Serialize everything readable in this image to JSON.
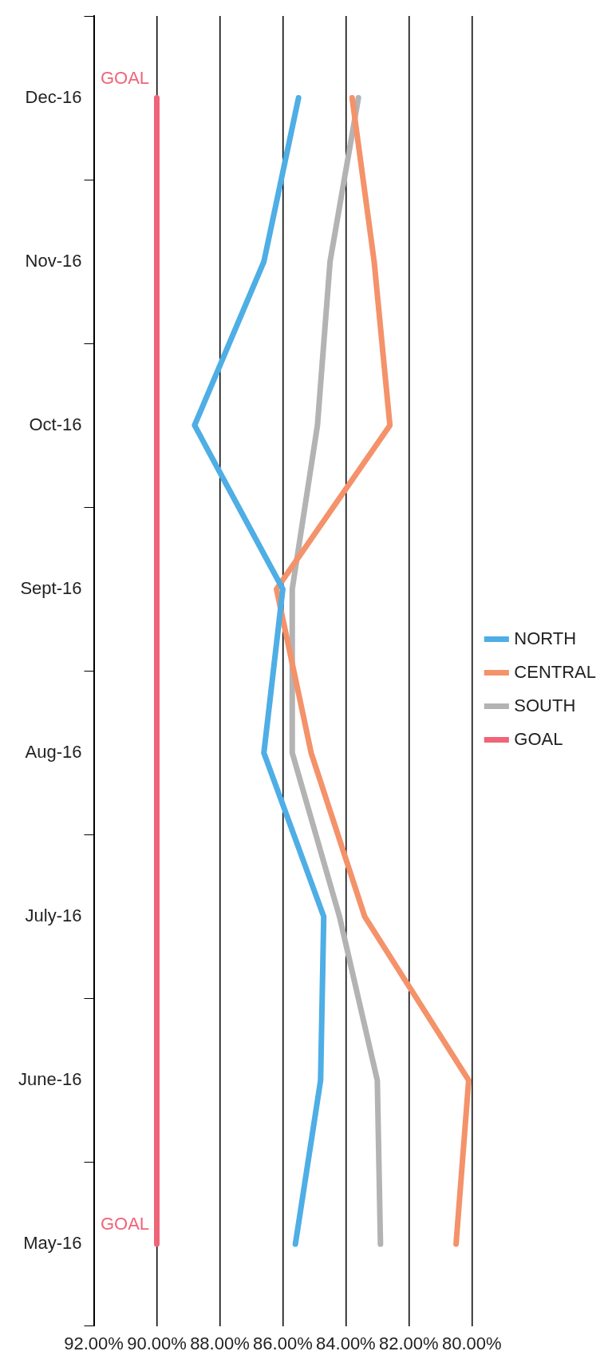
{
  "chart_data": {
    "type": "line",
    "orientation": "horizontal",
    "categories": [
      "Dec-16",
      "Nov-16",
      "Oct-16",
      "Sept-16",
      "Aug-16",
      "July-16",
      "June-16",
      "May-16"
    ],
    "series": [
      {
        "name": "NORTH",
        "color": "#4eaee5",
        "values": [
          85.5,
          86.6,
          88.8,
          86.0,
          86.6,
          84.7,
          84.8,
          85.6
        ]
      },
      {
        "name": "CENTRAL",
        "color": "#f4926a",
        "values": [
          83.8,
          83.1,
          82.6,
          86.2,
          85.1,
          83.4,
          80.1,
          80.5
        ]
      },
      {
        "name": "SOUTH",
        "color": "#b3b3b3",
        "values": [
          83.6,
          84.5,
          84.9,
          85.7,
          85.7,
          84.2,
          83.0,
          82.9
        ]
      },
      {
        "name": "GOAL",
        "color": "#f06478",
        "values": [
          90,
          90,
          90,
          90,
          90,
          90,
          90,
          90
        ]
      }
    ],
    "xlim": [
      92,
      80
    ],
    "xticks": [
      {
        "value": 92,
        "label": "92.00%"
      },
      {
        "value": 90,
        "label": "90.00%"
      },
      {
        "value": 88,
        "label": "88.00%"
      },
      {
        "value": 86,
        "label": "86.00%"
      },
      {
        "value": 84,
        "label": "84.00%"
      },
      {
        "value": 82,
        "label": "82.00%"
      },
      {
        "value": 80,
        "label": "80.00%"
      }
    ],
    "annotations": [
      {
        "text": "GOAL",
        "x": 90,
        "y": "May-16"
      },
      {
        "text": "GOAL",
        "x": 90,
        "y": "Dec-16"
      }
    ],
    "grid": "x",
    "legend": "right",
    "marker": "none",
    "line_style": "solid"
  }
}
